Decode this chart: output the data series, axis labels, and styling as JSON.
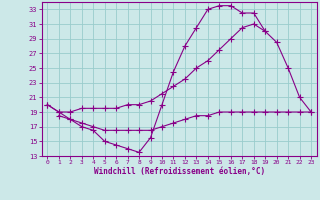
{
  "xlabel": "Windchill (Refroidissement éolien,°C)",
  "bg_color": "#cce8e8",
  "line_color": "#880088",
  "grid_color": "#99cccc",
  "ylim": [
    13,
    34
  ],
  "xlim": [
    -0.5,
    23.5
  ],
  "yticks": [
    13,
    15,
    17,
    19,
    21,
    23,
    25,
    27,
    29,
    31,
    33
  ],
  "xticks": [
    0,
    1,
    2,
    3,
    4,
    5,
    6,
    7,
    8,
    9,
    10,
    11,
    12,
    13,
    14,
    15,
    16,
    17,
    18,
    19,
    20,
    21,
    22,
    23
  ],
  "line1_x": [
    0,
    1,
    2,
    3,
    4,
    5,
    6,
    7,
    8,
    9,
    10,
    11,
    12,
    13,
    14,
    15,
    16,
    17,
    18,
    19,
    20,
    21,
    22,
    23
  ],
  "line1_y": [
    20,
    19,
    18,
    17,
    16.5,
    15,
    14.5,
    14,
    13.5,
    15.5,
    20,
    24.5,
    28,
    30.5,
    33,
    33.5,
    33.5,
    32.5,
    32.5,
    30,
    28.5,
    25,
    21,
    19
  ],
  "line2_x": [
    0,
    1,
    2,
    3,
    4,
    5,
    6,
    7,
    8,
    9,
    10,
    11,
    12,
    13,
    14,
    15,
    16,
    17,
    18,
    19
  ],
  "line2_y": [
    20,
    19,
    19,
    19.5,
    19.5,
    19.5,
    19.5,
    20,
    20,
    20.5,
    21.5,
    22.5,
    23.5,
    25,
    26,
    27.5,
    29,
    30.5,
    31,
    30
  ],
  "line3_x": [
    1,
    2,
    3,
    4,
    5,
    6,
    7,
    8,
    9,
    10,
    11,
    12,
    13,
    14,
    15,
    16,
    17,
    18,
    19,
    20,
    21,
    22,
    23
  ],
  "line3_y": [
    18.5,
    18,
    17.5,
    17,
    16.5,
    16.5,
    16.5,
    16.5,
    16.5,
    17,
    17.5,
    18,
    18.5,
    18.5,
    19,
    19,
    19,
    19,
    19,
    19,
    19,
    19,
    19
  ]
}
